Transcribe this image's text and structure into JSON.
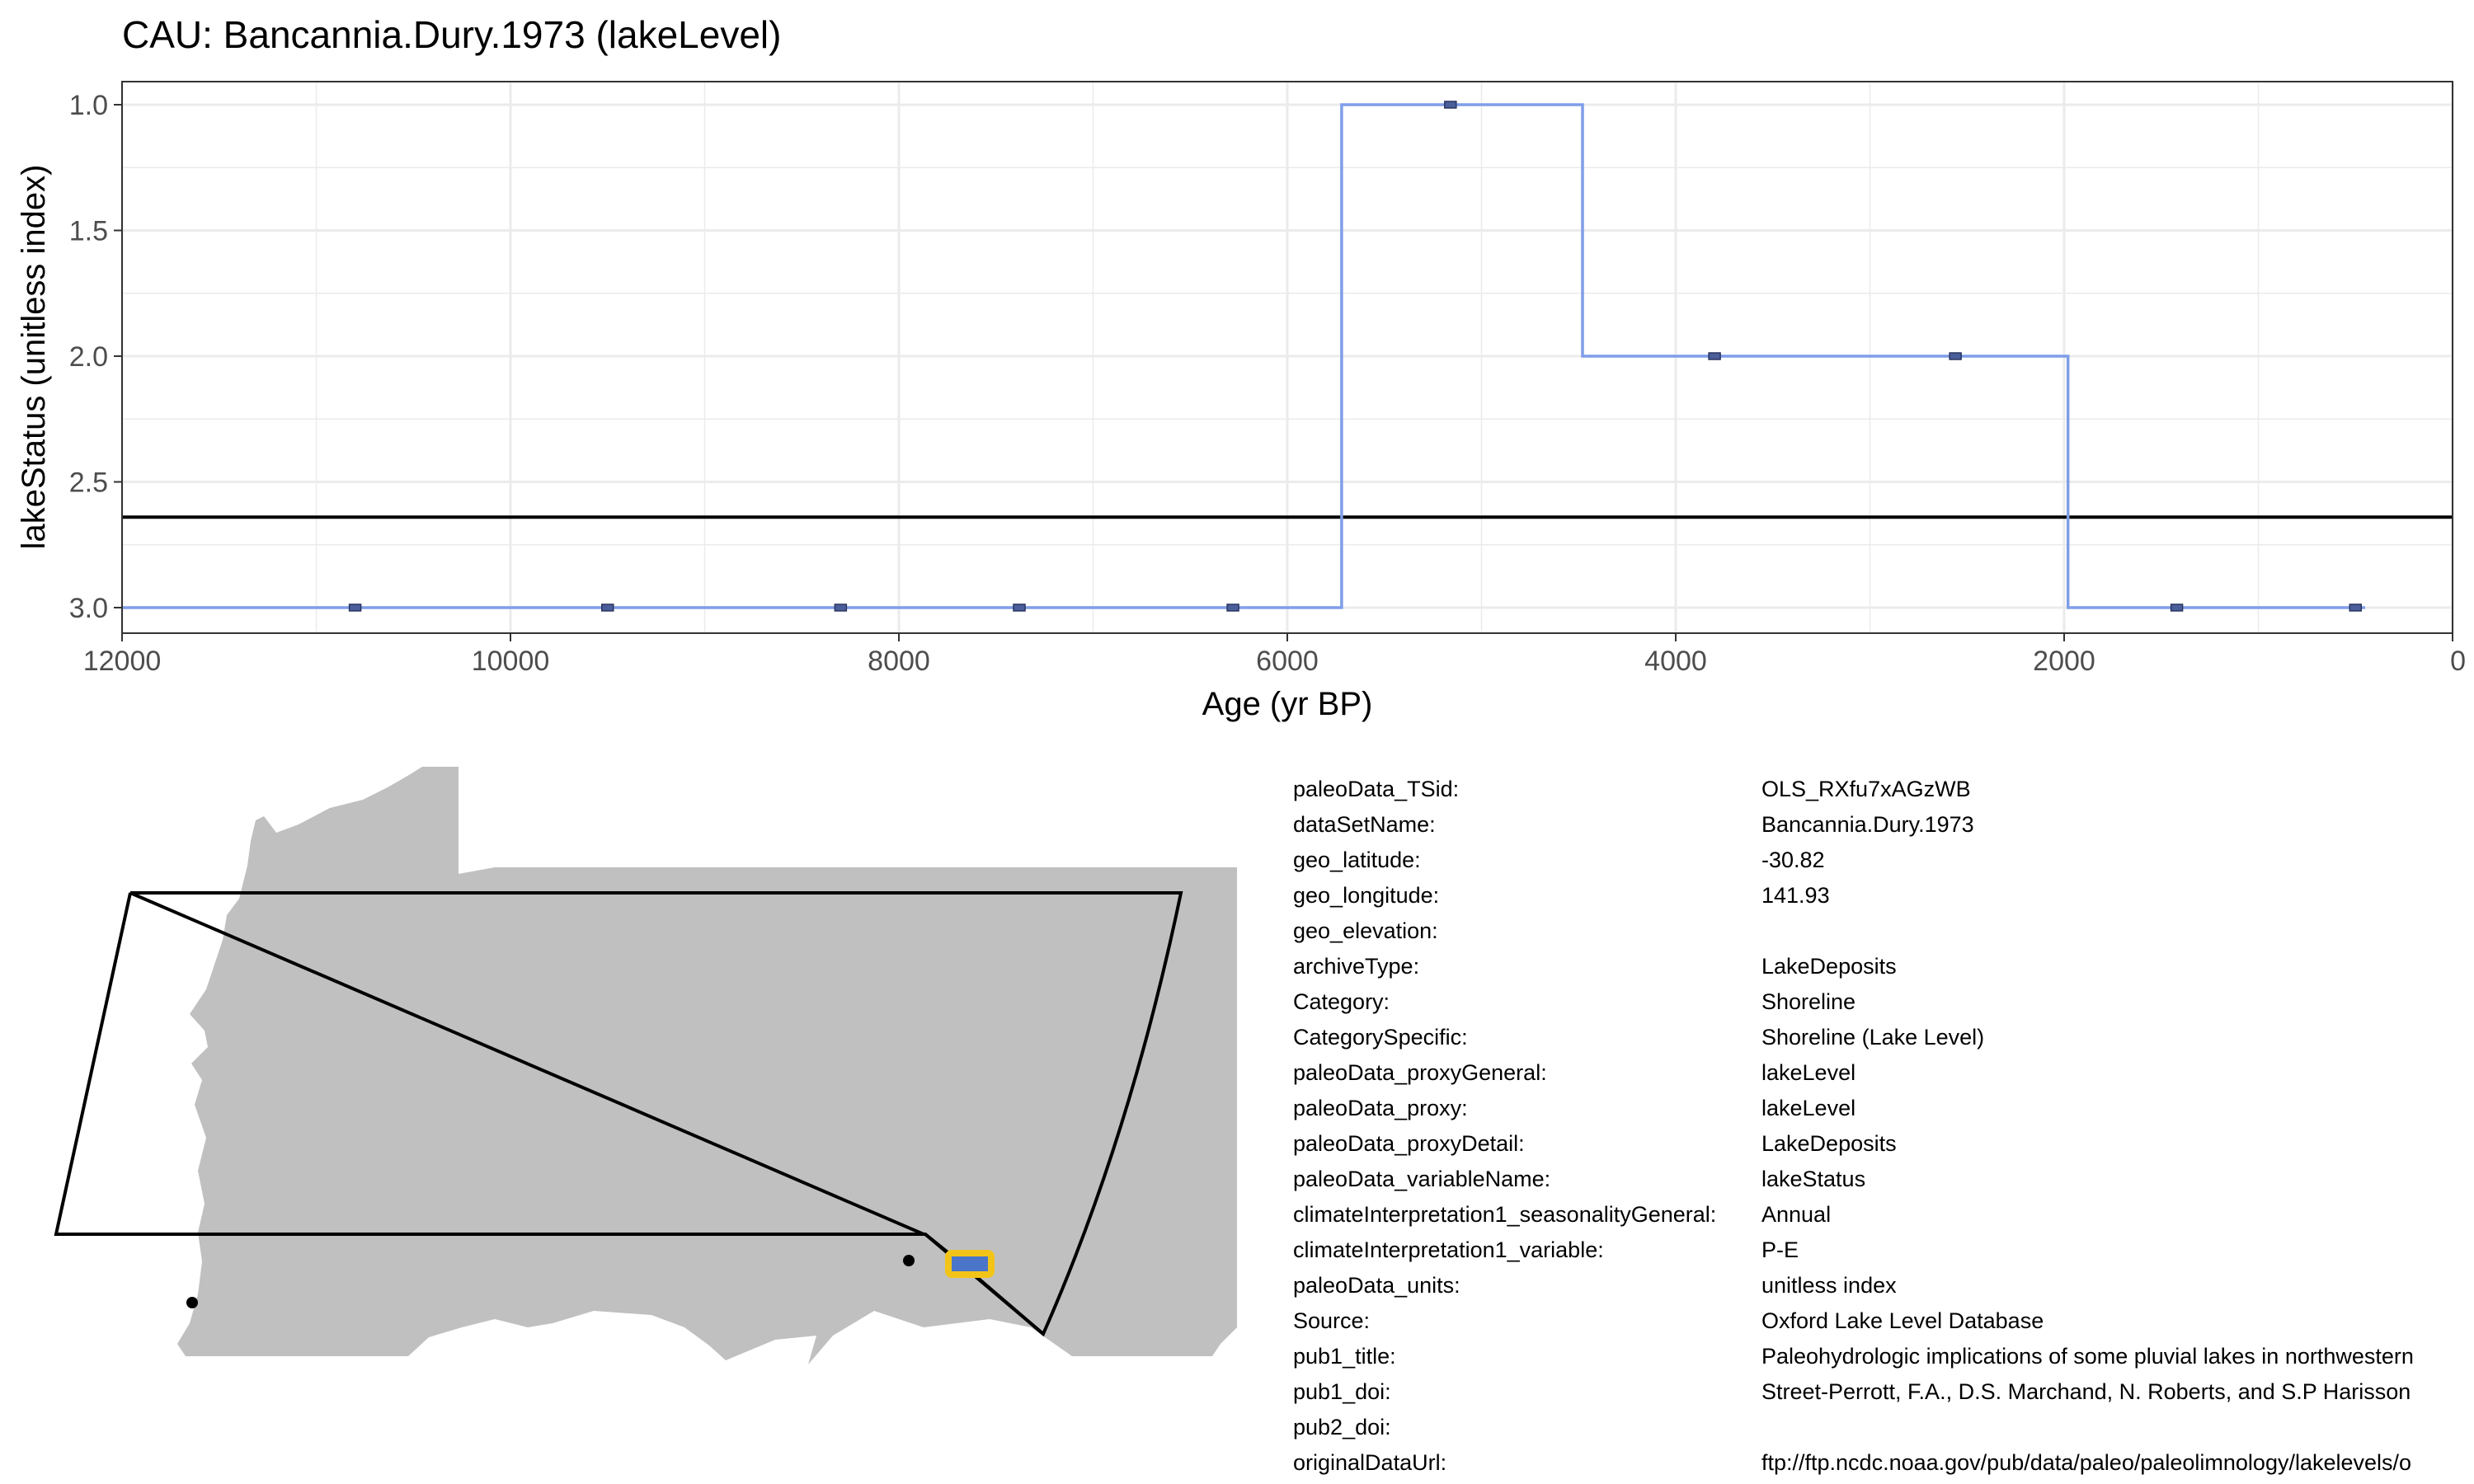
{
  "chart_data": {
    "type": "line",
    "title": "CAU: Bancannia.Dury.1973 (lakeLevel)",
    "xlabel": "Age (yr BP)",
    "ylabel": "lakeStatus (unitless index)",
    "xlim": [
      12000,
      0
    ],
    "ylim": [
      3.0,
      1.0
    ],
    "x_reversed": true,
    "y_reversed": true,
    "x_ticks": [
      12000,
      10000,
      8000,
      6000,
      4000,
      2000,
      0
    ],
    "y_ticks": [
      1.0,
      1.5,
      2.0,
      2.5,
      3.0
    ],
    "x_tick_labels": [
      "12000",
      "10000",
      "8000",
      "6000",
      "4000",
      "2000",
      "0"
    ],
    "y_tick_labels": [
      "1.0",
      "1.5",
      "2.0",
      "2.5",
      "3.0"
    ],
    "grid": true,
    "step_series": {
      "x": [
        12000,
        5720,
        5720,
        4480,
        4480,
        1980,
        1980,
        450
      ],
      "y": [
        3,
        3,
        1,
        1,
        2,
        2,
        3,
        3
      ],
      "color": "#7f9ee8"
    },
    "points": {
      "x": [
        10800,
        9500,
        8300,
        7380,
        6280,
        5160,
        3800,
        2560,
        1420,
        500
      ],
      "y": [
        3,
        3,
        3,
        3,
        3,
        1,
        2,
        2,
        3,
        3
      ],
      "color": "#4a5e9a"
    },
    "mean_line": {
      "y": 2.64,
      "color": "#000000"
    }
  },
  "map": {
    "land_color": "#c0c0c0",
    "site_marker_color": "#f3c418",
    "site_fill_color": "#4a75c9",
    "other_site_color": "#000000"
  },
  "metadata": [
    {
      "key": "paleoData_TSid:",
      "value": "OLS_RXfu7xAGzWB"
    },
    {
      "key": "dataSetName:",
      "value": "Bancannia.Dury.1973"
    },
    {
      "key": "geo_latitude:",
      "value": "-30.82"
    },
    {
      "key": "geo_longitude:",
      "value": "141.93"
    },
    {
      "key": "geo_elevation:",
      "value": ""
    },
    {
      "key": "archiveType:",
      "value": "LakeDeposits"
    },
    {
      "key": "Category:",
      "value": "Shoreline"
    },
    {
      "key": "CategorySpecific:",
      "value": "Shoreline (Lake Level)"
    },
    {
      "key": "paleoData_proxyGeneral:",
      "value": "lakeLevel"
    },
    {
      "key": "paleoData_proxy:",
      "value": "lakeLevel"
    },
    {
      "key": "paleoData_proxyDetail:",
      "value": "LakeDeposits"
    },
    {
      "key": "paleoData_variableName:",
      "value": "lakeStatus"
    },
    {
      "key": "climateInterpretation1_seasonalityGeneral:",
      "value": "Annual"
    },
    {
      "key": "climateInterpretation1_variable:",
      "value": "P-E"
    },
    {
      "key": "paleoData_units:",
      "value": "unitless index"
    },
    {
      "key": "Source:",
      "value": "Oxford Lake Level Database"
    },
    {
      "key": "pub1_title:",
      "value": "Paleohydrologic implications of some pluvial lakes in northwestern"
    },
    {
      "key": "pub1_doi:",
      "value": "Street-Perrott, F.A., D.S. Marchand, N. Roberts, and S.P Harisson"
    },
    {
      "key": "pub2_doi:",
      "value": ""
    },
    {
      "key": "originalDataUrl:",
      "value": "ftp://ftp.ncdc.noaa.gov/pub/data/paleo/paleolimnology/lakelevels/o"
    }
  ]
}
